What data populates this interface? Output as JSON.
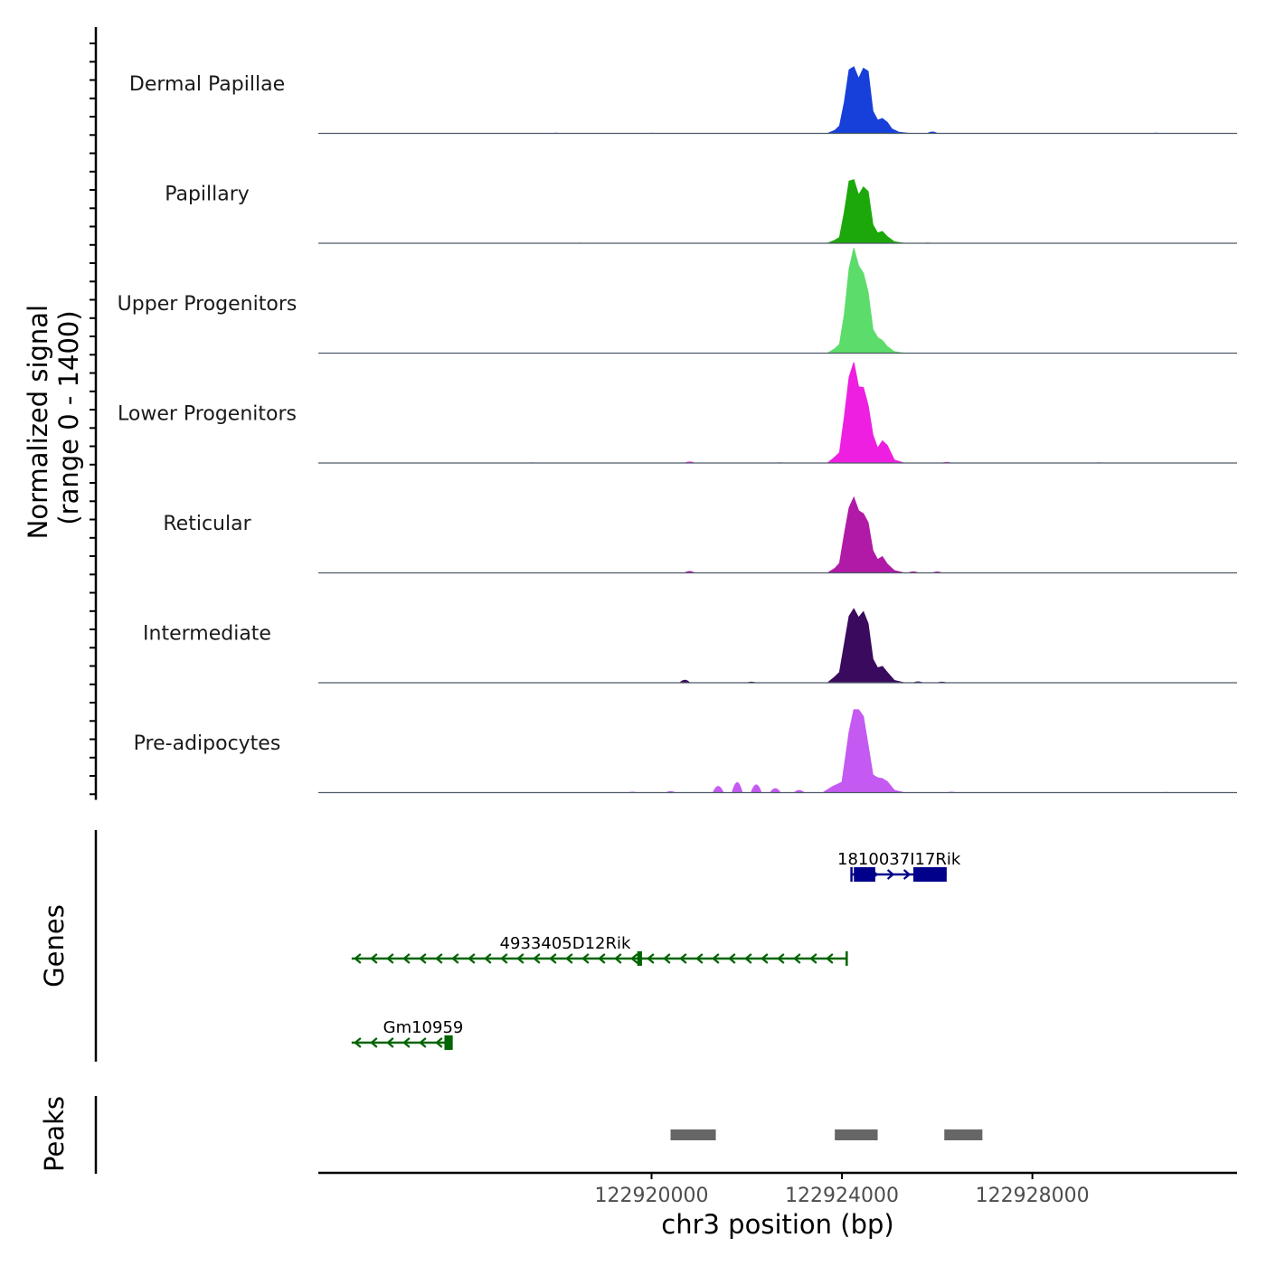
{
  "chart_data": {
    "type": "area",
    "title": "",
    "coverage": {
      "ylabel_line1": "Normalized signal",
      "ylabel_line2": "(range 0 - 1400)",
      "yrange": [
        0,
        1400
      ],
      "xlim": [
        122913000,
        122932300
      ],
      "tracks": [
        {
          "name": "Dermal Papillae",
          "color": "#1640d9",
          "main_peak": [
            [
              122923700,
              0
            ],
            [
              122923850,
              40
            ],
            [
              122923950,
              100
            ],
            [
              122924050,
              420
            ],
            [
              122924150,
              860
            ],
            [
              122924250,
              900
            ],
            [
              122924350,
              740
            ],
            [
              122924450,
              880
            ],
            [
              122924550,
              840
            ],
            [
              122924650,
              300
            ],
            [
              122924750,
              180
            ],
            [
              122924850,
              200
            ],
            [
              122924950,
              150
            ],
            [
              122925050,
              60
            ],
            [
              122925200,
              15
            ],
            [
              122925400,
              0
            ]
          ],
          "minor": [
            [
              122918000,
              10
            ],
            [
              122920000,
              8
            ],
            [
              122921500,
              6
            ],
            [
              122925900,
              25
            ],
            [
              122930600,
              10
            ]
          ]
        },
        {
          "name": "Papillary",
          "color": "#1ca80a",
          "main_peak": [
            [
              122923700,
              0
            ],
            [
              122923850,
              40
            ],
            [
              122923950,
              80
            ],
            [
              122924050,
              420
            ],
            [
              122924150,
              840
            ],
            [
              122924250,
              860
            ],
            [
              122924350,
              650
            ],
            [
              122924450,
              760
            ],
            [
              122924550,
              700
            ],
            [
              122924650,
              250
            ],
            [
              122924750,
              140
            ],
            [
              122924850,
              160
            ],
            [
              122924950,
              90
            ],
            [
              122925100,
              20
            ],
            [
              122925300,
              0
            ]
          ],
          "minor": [
            [
              122918500,
              8
            ],
            [
              122920800,
              6
            ],
            [
              122925800,
              10
            ],
            [
              122929500,
              6
            ]
          ]
        },
        {
          "name": "Upper Progenitors",
          "color": "#5cdc6a",
          "main_peak": [
            [
              122923700,
              0
            ],
            [
              122923850,
              60
            ],
            [
              122923950,
              120
            ],
            [
              122924050,
              520
            ],
            [
              122924150,
              1140
            ],
            [
              122924250,
              1420
            ],
            [
              122924350,
              1180
            ],
            [
              122924450,
              1080
            ],
            [
              122924550,
              820
            ],
            [
              122924650,
              320
            ],
            [
              122924750,
              210
            ],
            [
              122924850,
              170
            ],
            [
              122924950,
              90
            ],
            [
              122925100,
              20
            ],
            [
              122925300,
              0
            ]
          ],
          "minor": [
            [
              122919000,
              6
            ],
            [
              122920500,
              6
            ],
            [
              122929200,
              6
            ]
          ]
        },
        {
          "name": "Lower Progenitors",
          "color": "#ef1fe2",
          "main_peak": [
            [
              122923700,
              0
            ],
            [
              122923850,
              80
            ],
            [
              122923950,
              140
            ],
            [
              122924050,
              620
            ],
            [
              122924150,
              1160
            ],
            [
              122924250,
              1360
            ],
            [
              122924350,
              1030
            ],
            [
              122924450,
              1020
            ],
            [
              122924550,
              780
            ],
            [
              122924650,
              380
            ],
            [
              122924750,
              200
            ],
            [
              122924850,
              300
            ],
            [
              122924950,
              240
            ],
            [
              122925100,
              40
            ],
            [
              122925300,
              0
            ]
          ],
          "minor": [
            [
              122917500,
              8
            ],
            [
              122920800,
              20
            ],
            [
              122922700,
              10
            ],
            [
              122926200,
              15
            ],
            [
              122929400,
              10
            ]
          ]
        },
        {
          "name": "Reticular",
          "color": "#b11aa6",
          "main_peak": [
            [
              122923700,
              0
            ],
            [
              122923850,
              60
            ],
            [
              122923950,
              130
            ],
            [
              122924050,
              520
            ],
            [
              122924150,
              880
            ],
            [
              122924250,
              1020
            ],
            [
              122924350,
              840
            ],
            [
              122924450,
              800
            ],
            [
              122924550,
              680
            ],
            [
              122924650,
              300
            ],
            [
              122924750,
              180
            ],
            [
              122924850,
              220
            ],
            [
              122924950,
              120
            ],
            [
              122925100,
              30
            ],
            [
              122925300,
              0
            ]
          ],
          "minor": [
            [
              122920800,
              25
            ],
            [
              122925500,
              20
            ],
            [
              122926000,
              18
            ]
          ]
        },
        {
          "name": "Intermediate",
          "color": "#3a0a5e",
          "main_peak": [
            [
              122923700,
              0
            ],
            [
              122923850,
              80
            ],
            [
              122923950,
              140
            ],
            [
              122924050,
              520
            ],
            [
              122924150,
              900
            ],
            [
              122924250,
              1000
            ],
            [
              122924350,
              880
            ],
            [
              122924450,
              960
            ],
            [
              122924550,
              800
            ],
            [
              122924650,
              320
            ],
            [
              122924750,
              200
            ],
            [
              122924850,
              220
            ],
            [
              122924950,
              140
            ],
            [
              122925100,
              30
            ],
            [
              122925300,
              0
            ]
          ],
          "minor": [
            [
              122920700,
              40
            ],
            [
              122922100,
              15
            ],
            [
              122925600,
              18
            ],
            [
              122926100,
              15
            ]
          ]
        },
        {
          "name": "Pre-adipocytes",
          "color": "#c45af2",
          "main_peak": [
            [
              122923600,
              0
            ],
            [
              122923800,
              80
            ],
            [
              122924000,
              140
            ],
            [
              122924150,
              820
            ],
            [
              122924250,
              1120
            ],
            [
              122924350,
              1120
            ],
            [
              122924450,
              1030
            ],
            [
              122924550,
              640
            ],
            [
              122924650,
              240
            ],
            [
              122924750,
              200
            ],
            [
              122924850,
              190
            ],
            [
              122924950,
              150
            ],
            [
              122925100,
              30
            ],
            [
              122925300,
              0
            ]
          ],
          "minor": [
            [
              122921800,
              140
            ],
            [
              122921400,
              90
            ],
            [
              122922200,
              110
            ],
            [
              122922600,
              60
            ],
            [
              122920400,
              20
            ],
            [
              122919600,
              12
            ],
            [
              122923100,
              35
            ],
            [
              122926300,
              12
            ],
            [
              122930800,
              10
            ]
          ]
        }
      ]
    },
    "genes": {
      "ylabel": "Genes",
      "items": [
        {
          "name": "1810037I17Rik",
          "strand": "+",
          "color": "#00008b",
          "start": 122924200,
          "end": 122926200,
          "exons": [
            [
              122924250,
              122924700
            ],
            [
              122925500,
              122926200
            ]
          ]
        },
        {
          "name": "4933405D12Rik",
          "strand": "-",
          "color": "#006400",
          "start": 122913700,
          "end": 122924100,
          "exons": [
            [
              122919700,
              122919800
            ]
          ]
        },
        {
          "name": "Gm10959",
          "strand": "-",
          "color": "#006400",
          "start": 122913700,
          "end": 122915800,
          "exons": [
            [
              122915650,
              122915800
            ]
          ]
        }
      ]
    },
    "peaks": {
      "ylabel": "Peaks",
      "color": "#666666",
      "regions": [
        [
          122920400,
          122921350
        ],
        [
          122923850,
          122924750
        ],
        [
          122926150,
          122926950
        ]
      ]
    },
    "xaxis": {
      "label": "chr3 position (bp)",
      "ticks": [
        122920000,
        122924000,
        122928000
      ],
      "tick_labels": [
        "122920000",
        "122924000",
        "122928000"
      ]
    }
  }
}
